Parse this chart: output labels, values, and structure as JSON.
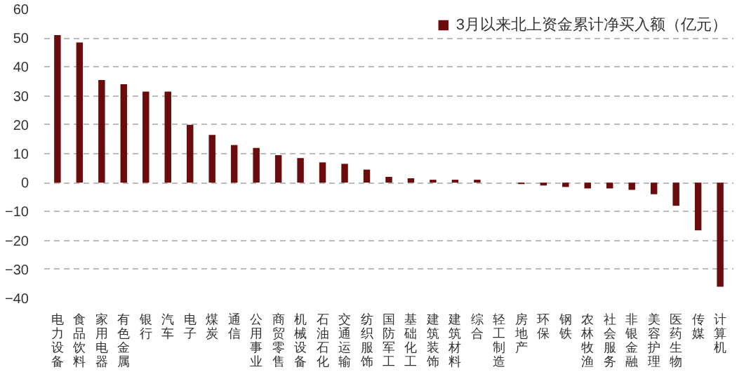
{
  "chart_data": {
    "type": "bar",
    "categories": [
      "电力设备",
      "食品饮料",
      "家用电器",
      "有色金属",
      "银行",
      "汽车",
      "电子",
      "煤炭",
      "通信",
      "公用事业",
      "商贸零售",
      "机械设备",
      "石油石化",
      "交通运输",
      "纺织服饰",
      "国防军工",
      "基础化工",
      "建筑装饰",
      "建筑材料",
      "综合",
      "轻工制造",
      "房地产",
      "环保",
      "钢铁",
      "农林牧渔",
      "社会服务",
      "非银金融",
      "美容护理",
      "医药生物",
      "传媒",
      "计算机"
    ],
    "series": [
      {
        "name": "3月以来北上资金累计净买入额（亿元）",
        "color": "#6b0b0b",
        "values": [
          51,
          48.5,
          35.5,
          34,
          31.5,
          31.5,
          20,
          16.5,
          13,
          12,
          9.5,
          8.5,
          7,
          6.5,
          4.5,
          2,
          1.5,
          1,
          1,
          1,
          0,
          -0.5,
          -1,
          -1.5,
          -2,
          -2,
          -2.5,
          -4,
          -8,
          -16.5,
          -36
        ]
      }
    ],
    "ylim": [
      -40,
      60
    ],
    "yticks": [
      -40,
      -30,
      -20,
      -10,
      0,
      10,
      20,
      30,
      40,
      50,
      60
    ],
    "grid": "y",
    "legend": "top right"
  }
}
